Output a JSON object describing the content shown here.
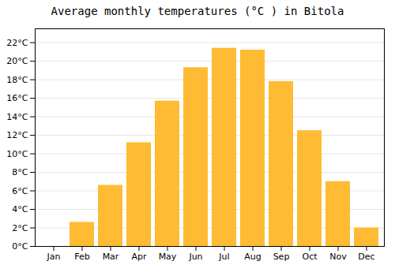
{
  "chart_data": {
    "type": "bar",
    "title": "Average monthly temperatures (°C ) in Bitola",
    "categories": [
      "Jan",
      "Feb",
      "Mar",
      "Apr",
      "May",
      "Jun",
      "Jul",
      "Aug",
      "Sep",
      "Oct",
      "Nov",
      "Dec"
    ],
    "values": [
      0.0,
      2.6,
      6.6,
      11.2,
      15.7,
      19.3,
      21.4,
      21.2,
      17.8,
      12.5,
      7.0,
      2.0
    ],
    "color": "#FFBB33",
    "ylim": [
      0,
      23.5
    ],
    "yticks": [
      {
        "value": 0,
        "label": "0°C"
      },
      {
        "value": 2,
        "label": "2°C"
      },
      {
        "value": 4,
        "label": "4°C"
      },
      {
        "value": 6,
        "label": "6°C"
      },
      {
        "value": 8,
        "label": "8°C"
      },
      {
        "value": 10,
        "label": "10°C"
      },
      {
        "value": 12,
        "label": "12°C"
      },
      {
        "value": 14,
        "label": "14°C"
      },
      {
        "value": 16,
        "label": "16°C"
      },
      {
        "value": 18,
        "label": "18°C"
      },
      {
        "value": 20,
        "label": "20°C"
      },
      {
        "value": 22,
        "label": "22°C"
      }
    ],
    "grid": true
  }
}
